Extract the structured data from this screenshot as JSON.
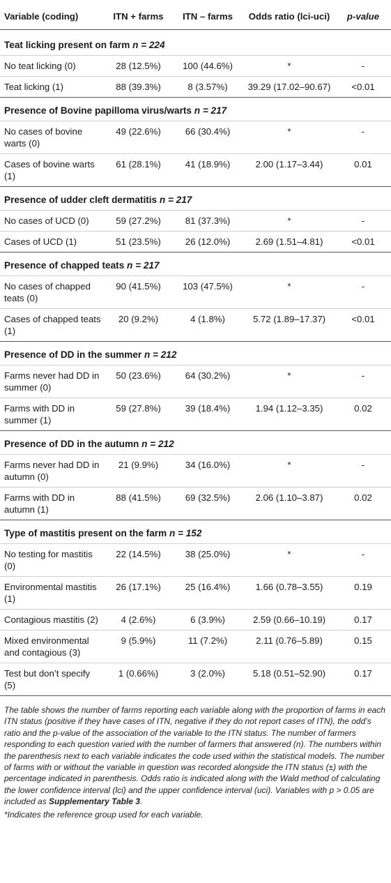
{
  "headers": {
    "variable": "Variable (coding)",
    "itn_plus": "ITN + farms",
    "itn_minus": "ITN – farms",
    "or": "Odds ratio (lci-uci)",
    "p": "p-value"
  },
  "sections": [
    {
      "title": "Teat licking present on farm",
      "n": "n = 224",
      "rows": [
        {
          "label": "No teat licking (0)",
          "plus": "28 (12.5%)",
          "minus": "100 (44.6%)",
          "or": "*",
          "p": "-"
        },
        {
          "label": "Teat licking (1)",
          "plus": "88 (39.3%)",
          "minus": "8 (3.57%)",
          "or": "39.29 (17.02–90.67)",
          "p": "<0.01"
        }
      ]
    },
    {
      "title": "Presence of Bovine papilloma virus/warts",
      "n": "n = 217",
      "rows": [
        {
          "label": "No cases of bovine warts (0)",
          "plus": "49 (22.6%)",
          "minus": "66 (30.4%)",
          "or": "*",
          "p": "-"
        },
        {
          "label": "Cases of bovine warts (1)",
          "plus": "61 (28.1%)",
          "minus": "41 (18.9%)",
          "or": "2.00 (1.17–3.44)",
          "p": "0.01"
        }
      ]
    },
    {
      "title": "Presence of udder cleft dermatitis",
      "n": "n = 217",
      "rows": [
        {
          "label": "No cases of UCD (0)",
          "plus": "59 (27.2%)",
          "minus": "81 (37.3%)",
          "or": "*",
          "p": "-"
        },
        {
          "label": "Cases of UCD (1)",
          "plus": "51 (23.5%)",
          "minus": "26 (12.0%)",
          "or": "2.69 (1.51–4.81)",
          "p": "<0.01"
        }
      ]
    },
    {
      "title": "Presence of chapped teats",
      "n": "n = 217",
      "rows": [
        {
          "label": "No cases of chapped teats (0)",
          "plus": "90 (41.5%)",
          "minus": "103 (47.5%)",
          "or": "*",
          "p": "-"
        },
        {
          "label": "Cases of chapped teats (1)",
          "plus": "20 (9.2%)",
          "minus": "4 (1.8%)",
          "or": "5.72 (1.89–17.37)",
          "p": "<0.01"
        }
      ]
    },
    {
      "title": "Presence of DD in the summer",
      "n": "n = 212",
      "rows": [
        {
          "label": "Farms never had DD in summer (0)",
          "plus": "50 (23.6%)",
          "minus": "64 (30.2%)",
          "or": "*",
          "p": "-"
        },
        {
          "label": "Farms with DD in summer (1)",
          "plus": "59 (27.8%)",
          "minus": "39 (18.4%)",
          "or": "1.94 (1.12–3.35)",
          "p": "0.02"
        }
      ]
    },
    {
      "title": "Presence of DD in the autumn",
      "n": "n = 212",
      "rows": [
        {
          "label": "Farms never had DD in autumn (0)",
          "plus": "21 (9.9%)",
          "minus": "34 (16.0%)",
          "or": "*",
          "p": "-"
        },
        {
          "label": "Farms with DD in autumn (1)",
          "plus": "88 (41.5%)",
          "minus": "69 (32.5%)",
          "or": "2.06 (1.10–3.87)",
          "p": "0.02"
        }
      ]
    },
    {
      "title": "Type of mastitis present on the farm",
      "n": "n = 152",
      "rows": [
        {
          "label": "No testing for mastitis (0)",
          "plus": "22 (14.5%)",
          "minus": "38 (25.0%)",
          "or": "*",
          "p": "-"
        },
        {
          "label": "Environmental mastitis (1)",
          "plus": "26 (17.1%)",
          "minus": "25 (16.4%)",
          "or": "1.66 (0.78–3.55)",
          "p": "0.19"
        },
        {
          "label": "Contagious mastitis (2)",
          "plus": "4 (2.6%)",
          "minus": "6 (3.9%)",
          "or": "2.59 (0.66–10.19)",
          "p": "0.17"
        },
        {
          "label": "Mixed environmental and contagious (3)",
          "plus": "9 (5.9%)",
          "minus": "11 (7.2%)",
          "or": "2.11 (0.76–5.89)",
          "p": "0.15"
        },
        {
          "label": "Test but don’t specify (5)",
          "plus": "1 (0.66%)",
          "minus": "3 (2.0%)",
          "or": "5.18 (0.51–52.90)",
          "p": "0.17"
        }
      ]
    }
  ],
  "footnote": {
    "text_before": "The table shows the number of farms reporting each variable along with the proportion of farms in each ITN status (positive if they have cases of ITN, negative if they do not report cases of ITN), the odd’s ratio and the p-value of the association of the variable to the ITN status. The number of farmers responding to each question varied with the number of farmers that answered (n). The numbers within the parenthesis next to each variable indicates the code used within the statistical models. The number of farms with or without the variable in question was recorded alongside the ITN status (±) with the percentage indicated in parenthesis. Odds ratio is indicated along with the Wald method of calculating the lower confidence interval (lci) and the upper confidence interval (uci). Variables with p > 0.05 are included as ",
    "bold_ref": "Supplementary Table 3",
    "text_after": ".",
    "reference_note": "*Indicates the reference group used for each variable."
  }
}
